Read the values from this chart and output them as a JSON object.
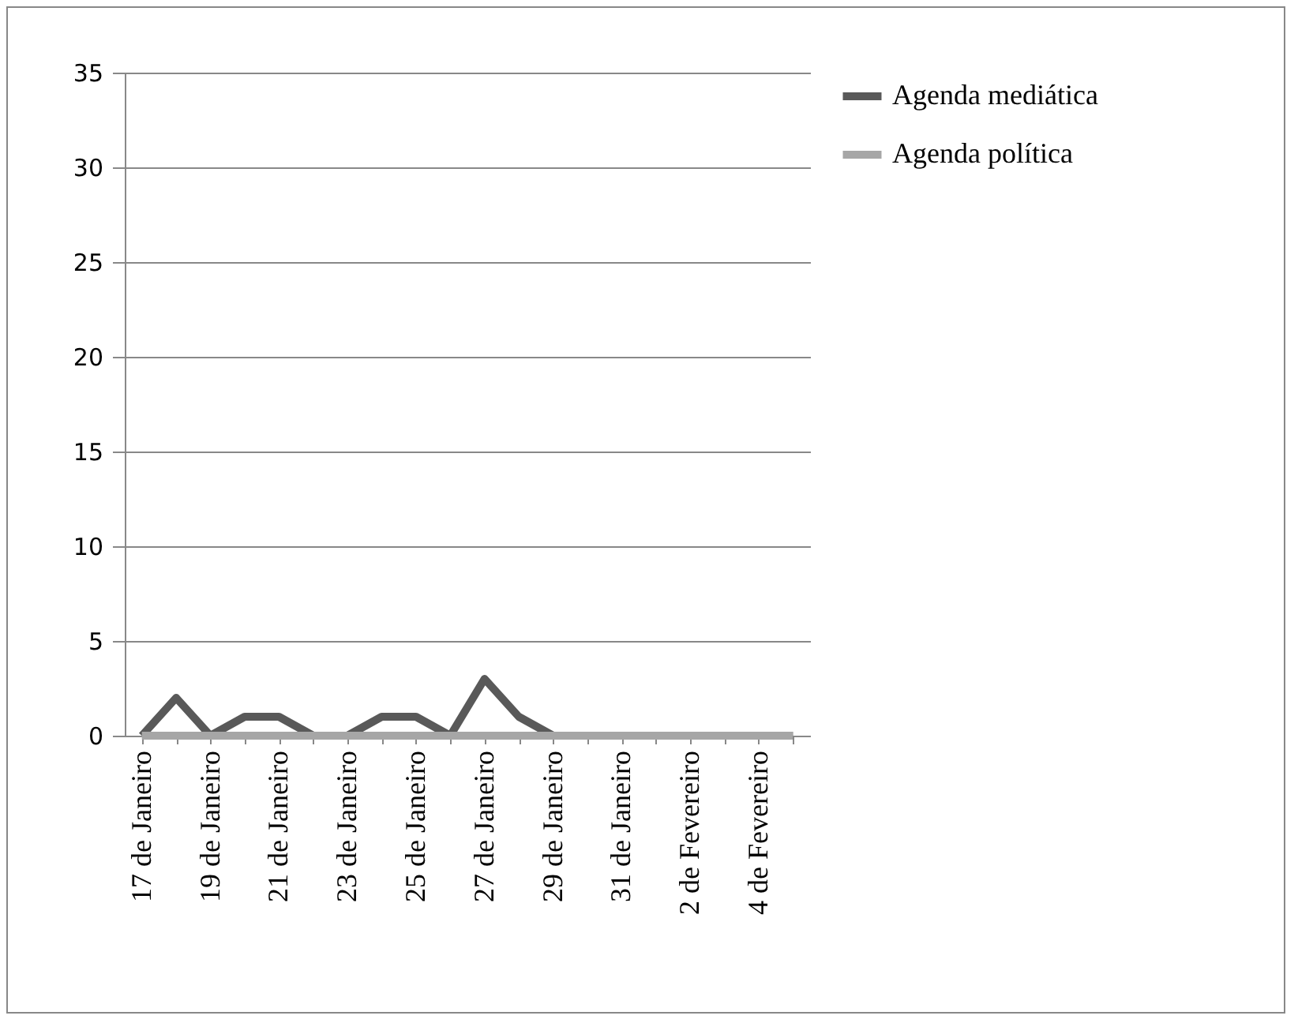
{
  "chart_data": {
    "type": "line",
    "categories": [
      "17 de Janeiro",
      null,
      "19 de Janeiro",
      null,
      "21 de Janeiro",
      null,
      "23 de Janeiro",
      null,
      "25 de Janeiro",
      null,
      "27 de Janeiro",
      null,
      "29 de Janeiro",
      null,
      "31 de Janeiro",
      null,
      "2 de Fevereiro",
      null,
      "4 de Fevereiro",
      null
    ],
    "series": [
      {
        "name": "Agenda mediática",
        "color": "#595959",
        "values": [
          0,
          2,
          0,
          1,
          1,
          0,
          0,
          1,
          1,
          0,
          3,
          1,
          0,
          0,
          0,
          0,
          0,
          0,
          0,
          0
        ]
      },
      {
        "name": "Agenda política",
        "color": "#a6a6a6",
        "values": [
          0,
          0,
          0,
          0,
          0,
          0,
          0,
          0,
          0,
          0,
          0,
          0,
          0,
          0,
          0,
          0,
          0,
          0,
          0,
          0
        ]
      }
    ],
    "ylim": [
      0,
      35
    ],
    "yticks": [
      0,
      5,
      10,
      15,
      20,
      25,
      30,
      35
    ],
    "grid": "y",
    "legend": "right",
    "marker": "none",
    "line_style": "solid"
  }
}
